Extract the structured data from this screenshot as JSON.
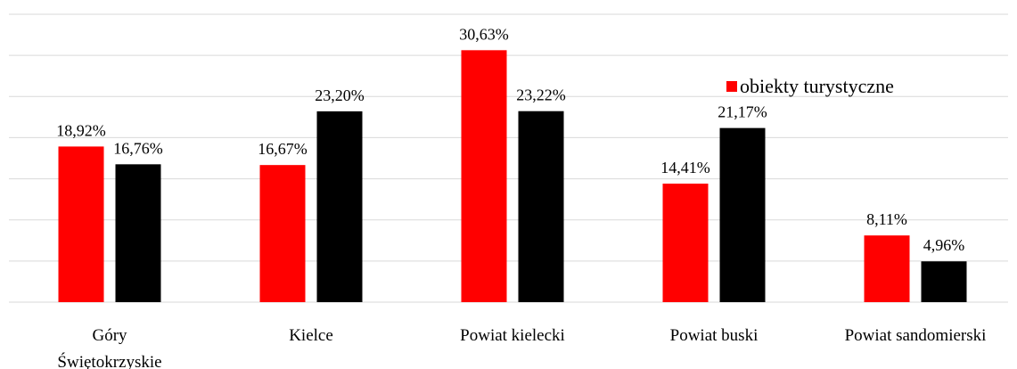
{
  "chart_data": {
    "type": "bar",
    "categories": [
      "Góry\nŚwiętokrzyskie",
      "Kielce",
      "Powiat kielecki",
      "Powiat buski",
      "Powiat sandomierski"
    ],
    "series": [
      {
        "name": "obiekty turystyczne",
        "color": "#ff0000",
        "values": [
          18.92,
          16.67,
          30.63,
          14.41,
          8.11
        ],
        "value_labels": [
          "18,92%",
          "16,67%",
          "30,63%",
          "14,41%",
          "8,11%"
        ]
      },
      {
        "color": "#000000",
        "values": [
          16.76,
          23.2,
          23.22,
          21.17,
          4.96
        ],
        "value_labels": [
          "16,76%",
          "23,20%",
          "23,22%",
          "21,17%",
          "4,96%"
        ]
      }
    ],
    "ylim": [
      0,
      35
    ],
    "yticks": [
      0,
      5,
      10,
      15,
      20,
      25,
      30,
      35
    ],
    "grid": true
  }
}
